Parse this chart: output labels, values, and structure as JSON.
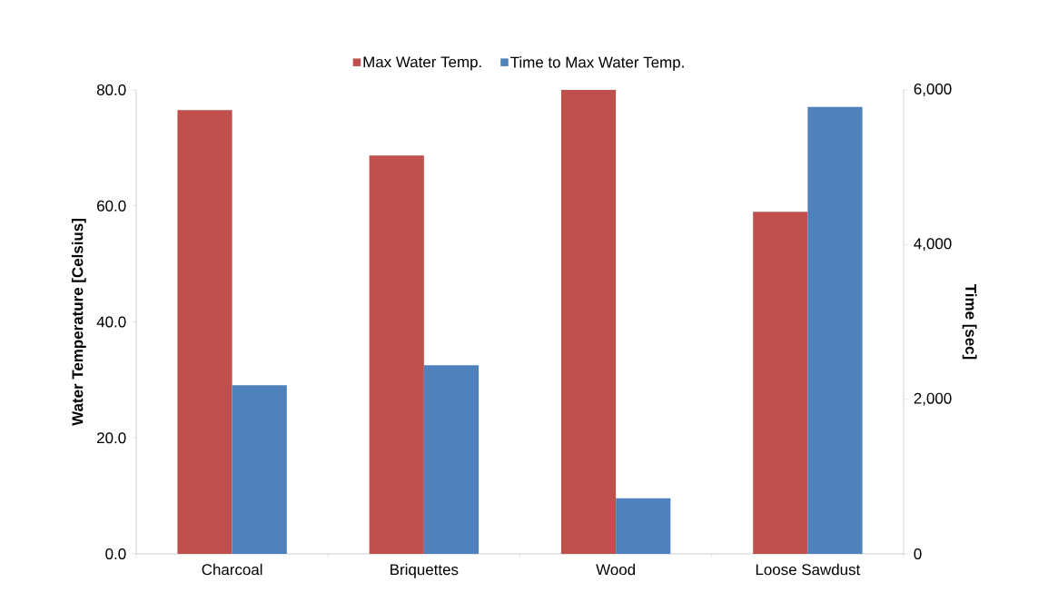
{
  "chart_data": {
    "type": "bar",
    "ylabel": "Water Temperature [Celsius]",
    "y2label": "Time [sec]",
    "categories": [
      "Charcoal",
      "Briquettes",
      "Wood",
      "Loose Sawdust"
    ],
    "series": [
      {
        "name": "Max Water Temp.",
        "color": "#c0504d",
        "values": [
          76.5,
          68.7,
          80.0,
          59.0
        ]
      },
      {
        "name": "Time to Max Water Temp.",
        "color": "#4f81bd",
        "axis": "y2",
        "values": [
          2180,
          2440,
          720,
          5780
        ]
      }
    ],
    "ylim": [
      0,
      80
    ],
    "yticks": [
      {
        "value": 0,
        "label": "0.0"
      },
      {
        "value": 20,
        "label": "20.0"
      },
      {
        "value": 40,
        "label": "40.0"
      },
      {
        "value": 60,
        "label": "60.0"
      },
      {
        "value": 80,
        "label": "80.0"
      }
    ],
    "y2lim": [
      0,
      6000
    ],
    "y2ticks": [
      0,
      {
        "value": 2000,
        "label": "2,000"
      },
      {
        "value": 4000,
        "label": "4,000"
      },
      {
        "value": 6000,
        "label": "6,000"
      }
    ],
    "grid": false,
    "legend": "top"
  }
}
